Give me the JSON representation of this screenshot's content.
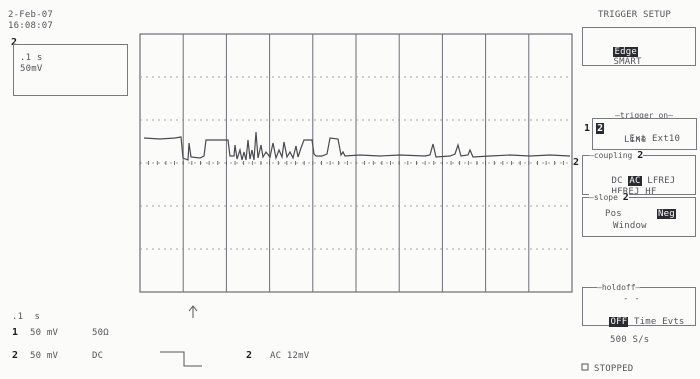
{
  "header": {
    "date": "2-Feb-07",
    "time": "16:08:07",
    "menu_title": "TRIGGER SETUP"
  },
  "zoom_box": {
    "trace_num": "2",
    "timebase": ".1 s",
    "volts": "50mV"
  },
  "bottom": {
    "timebase": ".1  s",
    "ch1": {
      "num": "1",
      "volts": "50 mV",
      "coupling": "50Ω"
    },
    "ch2": {
      "num": "2",
      "volts": "50 mV",
      "coupling": "DC"
    },
    "trigger_ch": "2",
    "trigger_info": "AC 12mV"
  },
  "right_menu": {
    "trigger_type": {
      "selected": "Edge",
      "other": "SMART"
    },
    "trigger_on": {
      "legend": "trigger on",
      "ch1": "1",
      "ch2": "2",
      "ext": "Ext",
      "ext10": "Ext10",
      "line": "Line"
    },
    "coupling": {
      "legend": "coupling",
      "ch": "2",
      "dc": "DC",
      "ac": "AC",
      "lfrej": "LFREJ",
      "hfrej": "HFREJ",
      "hf": "HF"
    },
    "slope": {
      "legend": "slope",
      "ch": "2",
      "pos": "Pos",
      "neg": "Neg",
      "window": "Window"
    },
    "holdoff": {
      "legend": "holdoff",
      "dashes": "- -",
      "off": "OFF",
      "time": "Time",
      "evts": "Evts"
    },
    "sample_rate": "500 S/s",
    "status": "STOPPED"
  },
  "grid": {
    "trace_marker": "2",
    "trigger_level_marker": "2"
  },
  "colors": {
    "trace": "#4a4a52",
    "grid": "#7a7a82",
    "background": "#fbfbf9"
  },
  "icons": {
    "trigger_arrow": "up-arrow-icon",
    "stopped": "square-icon",
    "trigger_edge": "falling-edge-icon"
  }
}
